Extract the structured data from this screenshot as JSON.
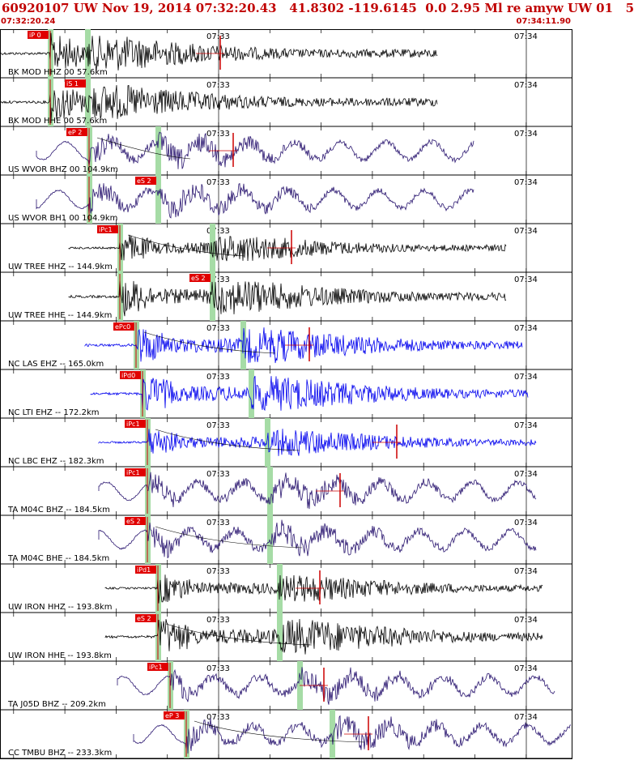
{
  "header": {
    "title": "60920107 UW Nov 19, 2014 07:32:20.43   41.8302 -119.6145  0.0 2.95 Ml re amyw UW 01   5",
    "time_start": "07:32:20.24",
    "time_end": "07:34:11.90"
  },
  "time_marks": {
    "minute_label_1": "07:33",
    "minute_label_2": "07:34"
  },
  "colors": {
    "header_text": "#c00000",
    "pick_box": "#e00000",
    "pick_line": "#cc0000",
    "pick_window": "#a6dca6",
    "trace_black": "#000000",
    "trace_purple": "#2a1670",
    "trace_blue": "#0000ee"
  },
  "panels": [
    {
      "label": "BK MOD HHZ 00 57.6km",
      "pick": "iP 0",
      "color": "black",
      "amp": "high"
    },
    {
      "label": "BK MOD HHE 00 57.6km",
      "pick": "iS 1",
      "color": "black",
      "amp": "high"
    },
    {
      "label": "US WVOR BHZ 00 104.9km",
      "pick": "eP 2",
      "color": "purple",
      "amp": "med"
    },
    {
      "label": "US WVOR BH1 00 104.9km",
      "pick": "eS 2",
      "color": "purple",
      "amp": "med"
    },
    {
      "label": "UW TREE HHZ -- 144.9km",
      "pick": "iPc1",
      "color": "black",
      "amp": "med"
    },
    {
      "label": "UW TREE HHE -- 144.9km",
      "pick": "eS 2",
      "color": "black",
      "amp": "high"
    },
    {
      "label": "NC LAS EHZ -- 165.0km",
      "pick": "ePc0",
      "color": "blue",
      "amp": "high"
    },
    {
      "label": "NC LTI EHZ -- 172.2km",
      "pick": "iPd0",
      "color": "blue",
      "amp": "high"
    },
    {
      "label": "NC LBC EHZ -- 182.3km",
      "pick": "iPc1",
      "color": "blue",
      "amp": "med"
    },
    {
      "label": "TA M04C BHZ -- 184.5km",
      "pick": "iPc1",
      "color": "purple",
      "amp": "med"
    },
    {
      "label": "TA M04C BHE -- 184.5km",
      "pick": "eS 2",
      "color": "purple",
      "amp": "med"
    },
    {
      "label": "UW IRON HHZ -- 193.8km",
      "pick": "iPd1",
      "color": "black",
      "amp": "med"
    },
    {
      "label": "UW IRON HHE -- 193.8km",
      "pick": "eS 2",
      "color": "black",
      "amp": "high"
    },
    {
      "label": "TA J05D BHZ -- 209.2km",
      "pick": "iPc1",
      "color": "purple",
      "amp": "med"
    },
    {
      "label": "CC TMBU BHZ -- 233.3km",
      "pick": "eP 3",
      "color": "purple",
      "amp": "med"
    }
  ]
}
